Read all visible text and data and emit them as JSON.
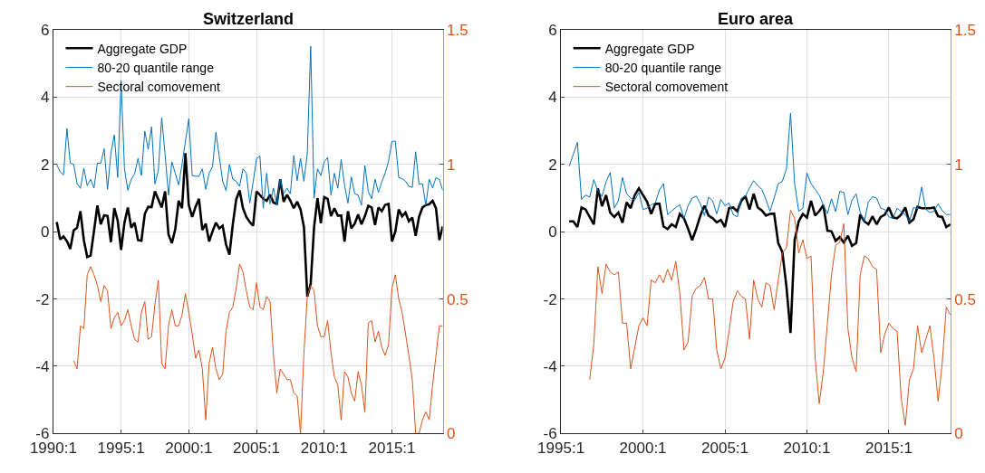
{
  "chart_data": [
    {
      "type": "line",
      "title": "Switzerland",
      "grid": true,
      "legend": "top left",
      "categories": [
        "1990:1",
        null,
        null,
        null,
        null,
        null,
        null,
        null,
        null,
        null,
        null,
        null,
        null,
        null,
        null,
        null,
        null,
        null,
        null,
        null,
        "1995:1",
        null,
        null,
        null,
        null,
        null,
        null,
        null,
        null,
        null,
        null,
        null,
        null,
        null,
        null,
        null,
        null,
        null,
        null,
        null,
        "2000:1",
        null,
        null,
        null,
        null,
        null,
        null,
        null,
        null,
        null,
        null,
        null,
        null,
        null,
        null,
        null,
        null,
        null,
        null,
        null,
        "2005:1",
        null,
        null,
        null,
        null,
        null,
        null,
        null,
        null,
        null,
        null,
        null,
        null,
        null,
        null,
        null,
        null,
        null,
        null,
        null,
        "2010:1",
        null,
        null,
        null,
        null,
        null,
        null,
        null,
        null,
        null,
        null,
        null,
        null,
        null,
        null,
        null,
        null,
        null,
        null,
        null,
        "2015:1",
        null,
        null,
        null,
        null,
        null,
        null,
        null,
        null,
        null,
        null,
        null,
        null,
        null,
        null,
        null
      ],
      "ylim": [
        -6,
        6
      ],
      "yticks": [
        -6,
        -4,
        -2,
        0,
        2,
        4,
        6
      ],
      "y2lim": [
        0,
        1.5
      ],
      "y2ticks": [
        0,
        0.5,
        1,
        1.5
      ],
      "series": [
        {
          "name": "Aggregate GDP",
          "color": "#000000",
          "values": [
            null,
            0.29,
            -0.23,
            -0.14,
            -0.28,
            -0.51,
            0.04,
            0.12,
            0.61,
            -0.25,
            -0.75,
            -0.71,
            0.02,
            0.78,
            0.22,
            0.49,
            0.47,
            -0.31,
            0.7,
            0.33,
            -0.54,
            0.27,
            0.72,
            0.12,
            0.27,
            -0.25,
            -0.27,
            0.53,
            0.74,
            0.73,
            1.2,
            0.96,
            0.72,
            1.2,
            -0.08,
            -0.34,
            0.07,
            0.92,
            0.7,
            2.34,
            0.79,
            0.44,
            0.74,
            0.98,
            0.05,
            0.24,
            -0.29,
            0.01,
            0.27,
            0.1,
            0.18,
            -0.38,
            -0.68,
            0.22,
            0.96,
            1.23,
            0.7,
            0.44,
            0.29,
            0.18,
            1.2,
            1.09,
            0.98,
            0.92,
            1.1,
            0.87,
            0.83,
            1.56,
            0.89,
            1.1,
            0.92,
            0.7,
            0.89,
            0.66,
            0.14,
            -1.93,
            -1.55,
            0.14,
            1.0,
            0.25,
            1.03,
            0.98,
            0.46,
            0.7,
            0.48,
            0.48,
            -0.29,
            0.61,
            0.1,
            0.24,
            0.51,
            0.22,
            0.46,
            0.77,
            0.72,
            0.2,
            0.72,
            0.61,
            0.8,
            0.83,
            -0.29,
            0.01,
            0.66,
            0.46,
            0.57,
            0.31,
            0.42,
            -0.12,
            0.44,
            0.72,
            0.79,
            0.82,
            0.92,
            0.7,
            -0.25,
            0.16
          ]
        },
        {
          "name": "80-20 quantile range",
          "color": "#0072bd",
          "values": [
            null,
            2.0,
            1.78,
            1.69,
            3.07,
            2.04,
            2.0,
            1.43,
            1.29,
            1.89,
            1.37,
            1.56,
            1.3,
            2.04,
            2.04,
            2.47,
            1.26,
            2.34,
            2.88,
            1.61,
            4.5,
            1.87,
            1.23,
            1.56,
            1.72,
            2.18,
            1.67,
            2.99,
            2.45,
            3.12,
            1.42,
            1.82,
            3.39,
            2.3,
            1.09,
            2.08,
            1.74,
            1.39,
            2.0,
            2.69,
            3.36,
            1.67,
            1.65,
            1.65,
            1.87,
            1.26,
            1.74,
            1.93,
            2.96,
            2.23,
            1.51,
            1.22,
            2.0,
            1.56,
            1.5,
            1.35,
            1.87,
            1.74,
            0.85,
            1.47,
            2.17,
            2.25,
            0.7,
            1.74,
            0.83,
            1.3,
            0.8,
            1.56,
            1.13,
            1.3,
            1.13,
            2.27,
            1.52,
            2.18,
            1.5,
            2.34,
            5.52,
            1.0,
            1.87,
            1.67,
            2.08,
            2.21,
            1.09,
            1.74,
            1.29,
            2.15,
            1.39,
            0.85,
            1.63,
            1.13,
            1.09,
            0.79,
            1.97,
            1.2,
            0.98,
            1.56,
            1.17,
            1.48,
            1.74,
            2.1,
            2.69,
            2.69,
            1.61,
            1.58,
            1.5,
            1.35,
            1.32,
            2.38,
            1.41,
            1.43,
            0.79,
            1.56,
            1.3,
            1.61,
            1.55,
            1.23
          ]
        },
        {
          "name": "Sectoral comovement",
          "color": "#d95319",
          "axis": "y2",
          "values": [
            null,
            null,
            null,
            null,
            null,
            null,
            0.27,
            0.24,
            0.4,
            0.39,
            0.59,
            0.62,
            0.59,
            0.55,
            0.49,
            0.55,
            0.53,
            0.39,
            0.43,
            0.45,
            0.4,
            0.42,
            0.46,
            0.4,
            0.35,
            0.34,
            0.45,
            0.49,
            0.35,
            0.36,
            0.48,
            0.57,
            0.26,
            0.24,
            0.4,
            0.46,
            0.4,
            0.4,
            0.44,
            0.52,
            0.45,
            0.37,
            0.28,
            0.31,
            0.24,
            0.05,
            0.26,
            0.32,
            0.24,
            0.2,
            0.22,
            0.38,
            0.45,
            0.47,
            0.54,
            0.63,
            0.6,
            0.53,
            0.47,
            0.46,
            0.56,
            0.47,
            0.46,
            0.51,
            0.49,
            0.29,
            0.15,
            0.24,
            0.22,
            0.2,
            0.2,
            0.15,
            0.14,
            0.0,
            0.3,
            0.51,
            0.55,
            0.53,
            0.4,
            0.36,
            0.36,
            0.42,
            0.3,
            0.21,
            0.18,
            0.05,
            0.23,
            0.21,
            0.15,
            0.12,
            0.23,
            0.18,
            0.08,
            0.41,
            0.42,
            0.34,
            0.38,
            0.32,
            0.29,
            0.33,
            0.54,
            0.59,
            0.5,
            0.45,
            0.37,
            0.29,
            0.2,
            0.0,
            0.0,
            0.05,
            0.08,
            0.05,
            0.18,
            0.29,
            0.4,
            0.4
          ]
        }
      ]
    },
    {
      "type": "line",
      "title": "Euro area",
      "grid": true,
      "legend": "top left",
      "categories": [
        "1995:1",
        null,
        null,
        null,
        null,
        null,
        null,
        null,
        null,
        null,
        null,
        null,
        null,
        null,
        null,
        null,
        null,
        null,
        null,
        null,
        "2000:1",
        null,
        null,
        null,
        null,
        null,
        null,
        null,
        null,
        null,
        null,
        null,
        null,
        null,
        null,
        null,
        null,
        null,
        null,
        null,
        "2005:1",
        null,
        null,
        null,
        null,
        null,
        null,
        null,
        null,
        null,
        null,
        null,
        null,
        null,
        null,
        null,
        null,
        null,
        null,
        null,
        "2010:1",
        null,
        null,
        null,
        null,
        null,
        null,
        null,
        null,
        null,
        null,
        null,
        null,
        null,
        null,
        null,
        null,
        null,
        null,
        null,
        "2015:1",
        null,
        null,
        null,
        null,
        null,
        null,
        null,
        null,
        null,
        null,
        null,
        null,
        null,
        null,
        null
      ],
      "ylim": [
        -6,
        6
      ],
      "yticks": [
        -6,
        -4,
        -2,
        0,
        2,
        4,
        6
      ],
      "y2lim": [
        0,
        1.5
      ],
      "y2ticks": [
        0,
        0.5,
        1,
        1.5
      ],
      "series": [
        {
          "name": "Aggregate GDP",
          "color": "#000000",
          "values": [
            null,
            null,
            0.31,
            0.31,
            0.14,
            0.72,
            0.66,
            0.44,
            0.22,
            1.29,
            0.76,
            1.09,
            0.57,
            0.44,
            0.57,
            0.27,
            0.87,
            0.7,
            1.09,
            1.29,
            1.09,
            0.89,
            0.53,
            0.83,
            0.83,
            0.16,
            0.08,
            0.22,
            0.14,
            0.53,
            0.4,
            0.09,
            -0.25,
            0.09,
            0.48,
            0.77,
            0.48,
            0.4,
            0.28,
            0.35,
            0.14,
            0.7,
            0.72,
            0.61,
            0.92,
            1.06,
            0.66,
            1.13,
            0.72,
            0.63,
            0.48,
            0.53,
            0.54,
            -0.34,
            -0.6,
            -1.63,
            -3.01,
            -0.25,
            0.31,
            0.53,
            0.42,
            0.92,
            0.48,
            0.61,
            0.79,
            0.03,
            0.01,
            -0.27,
            -0.16,
            -0.32,
            -0.12,
            -0.42,
            -0.34,
            0.51,
            0.31,
            0.22,
            0.46,
            0.22,
            0.44,
            0.51,
            0.72,
            0.42,
            0.4,
            0.51,
            0.72,
            0.27,
            0.37,
            0.74,
            0.7,
            0.7,
            0.7,
            0.72,
            0.46,
            0.44,
            0.14,
            0.22
          ]
        },
        {
          "name": "80-20 quantile range",
          "color": "#0072bd",
          "values": [
            null,
            null,
            1.95,
            2.3,
            2.66,
            0.96,
            1.09,
            1.03,
            1.55,
            1.22,
            1.05,
            1.48,
            1.76,
            0.7,
            0.92,
            1.61,
            1.13,
            1.0,
            0.94,
            1.17,
            0.66,
            0.7,
            0.8,
            0.85,
            1.24,
            1.43,
            0.51,
            0.61,
            0.72,
            0.8,
            0.4,
            0.77,
            1.0,
            1.06,
            0.83,
            0.48,
            1.03,
            0.92,
            0.53,
            0.96,
            0.77,
            0.86,
            0.51,
            0.44,
            1.0,
            1.06,
            1.3,
            1.52,
            1.37,
            1.26,
            0.96,
            0.61,
            1.0,
            1.43,
            1.5,
            1.87,
            3.53,
            1.43,
            0.61,
            0.7,
            1.75,
            1.43,
            1.26,
            1.09,
            0.8,
            0.54,
            0.98,
            0.6,
            1.2,
            1.17,
            0.51,
            0.94,
            1.13,
            0.57,
            0.31,
            0.89,
            1.04,
            1.0,
            0.7,
            0.66,
            0.44,
            0.4,
            0.7,
            0.6,
            0.51,
            0.31,
            0.72,
            0.68,
            1.33,
            0.66,
            0.57,
            0.61,
            0.83,
            0.63,
            0.51,
            0.51
          ]
        },
        {
          "name": "Sectoral comovement",
          "color": "#d95319",
          "axis": "y2",
          "values": [
            null,
            null,
            null,
            null,
            null,
            null,
            null,
            0.2,
            0.33,
            0.62,
            0.52,
            0.63,
            0.6,
            0.59,
            0.6,
            0.41,
            0.41,
            0.24,
            0.32,
            0.4,
            0.43,
            0.4,
            0.57,
            0.56,
            0.59,
            0.56,
            0.61,
            0.57,
            0.64,
            0.52,
            0.31,
            0.34,
            0.51,
            0.54,
            0.55,
            0.58,
            0.5,
            0.5,
            0.31,
            0.24,
            0.28,
            0.38,
            0.49,
            0.53,
            0.51,
            0.5,
            0.35,
            0.57,
            0.5,
            0.47,
            0.56,
            0.55,
            0.46,
            0.57,
            0.67,
            0.69,
            0.83,
            0.8,
            0.67,
            0.72,
            0.65,
            0.66,
            0.28,
            0.11,
            0.23,
            0.41,
            0.59,
            0.7,
            0.71,
            0.78,
            0.39,
            0.28,
            0.23,
            0.59,
            0.66,
            0.65,
            0.62,
            0.61,
            0.3,
            0.37,
            0.41,
            0.39,
            0.38,
            0.13,
            0.03,
            0.2,
            0.24,
            0.4,
            0.3,
            0.35,
            0.4,
            0.28,
            0.12,
            0.26,
            0.47,
            0.44
          ]
        }
      ]
    }
  ]
}
